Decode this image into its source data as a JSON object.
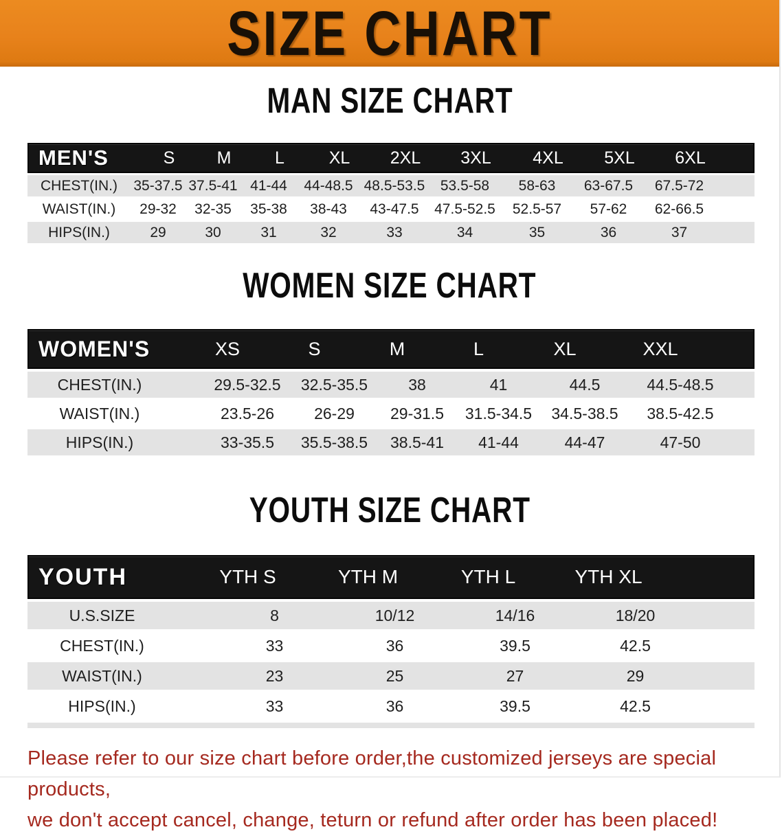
{
  "banner": {
    "title": "SIZE CHART"
  },
  "colors": {
    "banner_bg": "#e8821b",
    "header_bar_bg": "#151515",
    "row_gray": "#e3e3e3",
    "row_white": "#ffffff",
    "note_red": "#a5291f",
    "heading_black": "#0c0c0c"
  },
  "men": {
    "heading": "MAN SIZE CHART",
    "group_label": "MEN'S",
    "columns": [
      "S",
      "M",
      "L",
      "XL",
      "2XL",
      "3XL",
      "4XL",
      "5XL",
      "6XL"
    ],
    "rows": [
      {
        "label": "CHEST(IN.)",
        "values": [
          "35-37.5",
          "37.5-41",
          "41-44",
          "44-48.5",
          "48.5-53.5",
          "53.5-58",
          "58-63",
          "63-67.5",
          "67.5-72"
        ]
      },
      {
        "label": "WAIST(IN.)",
        "values": [
          "29-32",
          "32-35",
          "35-38",
          "38-43",
          "43-47.5",
          "47.5-52.5",
          "52.5-57",
          "57-62",
          "62-66.5"
        ]
      },
      {
        "label": "HIPS(IN.)",
        "values": [
          "29",
          "30",
          "31",
          "32",
          "33",
          "34",
          "35",
          "36",
          "37"
        ]
      }
    ]
  },
  "women": {
    "heading": "WOMEN SIZE CHART",
    "group_label": "WOMEN'S",
    "columns": [
      "XS",
      "S",
      "M",
      "L",
      "XL",
      "XXL"
    ],
    "rows": [
      {
        "label": "CHEST(IN.)",
        "values": [
          "29.5-32.5",
          "32.5-35.5",
          "38",
          "41",
          "44.5",
          "44.5-48.5"
        ]
      },
      {
        "label": "WAIST(IN.)",
        "values": [
          "23.5-26",
          "26-29",
          "29-31.5",
          "31.5-34.5",
          "34.5-38.5",
          "38.5-42.5"
        ]
      },
      {
        "label": "HIPS(IN.)",
        "values": [
          "33-35.5",
          "35.5-38.5",
          "38.5-41",
          "41-44",
          "44-47",
          "47-50"
        ]
      }
    ]
  },
  "youth": {
    "heading": "YOUTH SIZE CHART",
    "group_label": "YOUTH",
    "columns": [
      "YTH S",
      "YTH M",
      "YTH L",
      "YTH XL"
    ],
    "rows": [
      {
        "label": "U.S.SIZE",
        "values": [
          "8",
          "10/12",
          "14/16",
          "18/20"
        ]
      },
      {
        "label": "CHEST(IN.)",
        "values": [
          "33",
          "36",
          "39.5",
          "42.5"
        ]
      },
      {
        "label": "WAIST(IN.)",
        "values": [
          "23",
          "25",
          "27",
          "29"
        ]
      },
      {
        "label": "HIPS(IN.)",
        "values": [
          "33",
          "36",
          "39.5",
          "42.5"
        ]
      }
    ]
  },
  "note": {
    "line1": "Please refer to our size chart before order,the customized jerseys are special products,",
    "line2": "we don't accept cancel, change, teturn or refund after order has been placed!"
  }
}
